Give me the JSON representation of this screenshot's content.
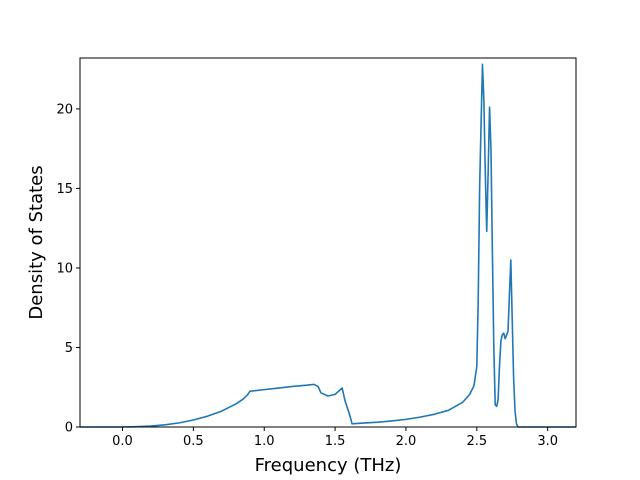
{
  "chart_data": {
    "type": "line",
    "title": "",
    "xlabel": "Frequency (THz)",
    "ylabel": "Density of States",
    "xlim": [
      -0.3,
      3.2
    ],
    "ylim": [
      0,
      23.2
    ],
    "grid": false,
    "legend": "none",
    "xticks": [
      {
        "value": 0.0,
        "label": "0.0"
      },
      {
        "value": 0.5,
        "label": "0.5"
      },
      {
        "value": 1.0,
        "label": "1.0"
      },
      {
        "value": 1.5,
        "label": "1.5"
      },
      {
        "value": 2.0,
        "label": "2.0"
      },
      {
        "value": 2.5,
        "label": "2.5"
      },
      {
        "value": 3.0,
        "label": "3.0"
      }
    ],
    "yticks": [
      {
        "value": 0,
        "label": "0"
      },
      {
        "value": 5,
        "label": "5"
      },
      {
        "value": 10,
        "label": "10"
      },
      {
        "value": 15,
        "label": "15"
      },
      {
        "value": 20,
        "label": "20"
      }
    ],
    "series": [
      {
        "color": "#1f77b4",
        "x": [
          -0.3,
          0.0,
          0.1,
          0.2,
          0.3,
          0.4,
          0.5,
          0.6,
          0.7,
          0.8,
          0.85,
          0.88,
          0.9,
          1.0,
          1.1,
          1.2,
          1.3,
          1.35,
          1.38,
          1.4,
          1.45,
          1.5,
          1.55,
          1.57,
          1.6,
          1.62,
          1.7,
          1.8,
          1.9,
          2.0,
          2.1,
          2.2,
          2.3,
          2.4,
          2.45,
          2.48,
          2.5,
          2.51,
          2.52,
          2.53,
          2.54,
          2.55,
          2.56,
          2.57,
          2.58,
          2.59,
          2.6,
          2.61,
          2.62,
          2.63,
          2.64,
          2.65,
          2.66,
          2.67,
          2.68,
          2.69,
          2.7,
          2.72,
          2.74,
          2.76,
          2.77,
          2.78,
          2.79,
          2.8,
          2.81,
          2.82,
          2.83,
          2.84,
          2.85,
          2.86,
          2.87,
          2.88,
          2.89,
          2.9,
          2.91,
          2.92,
          3.0,
          3.2
        ],
        "y": [
          0,
          0,
          0.02,
          0.06,
          0.14,
          0.26,
          0.44,
          0.68,
          1.0,
          1.45,
          1.75,
          2.0,
          2.25,
          2.35,
          2.45,
          2.55,
          2.63,
          2.68,
          2.55,
          2.15,
          1.95,
          2.05,
          2.45,
          1.65,
          0.85,
          0.2,
          0.25,
          0.3,
          0.38,
          0.48,
          0.62,
          0.8,
          1.05,
          1.55,
          2.05,
          2.6,
          3.8,
          8.0,
          15.0,
          19.0,
          22.8,
          20.5,
          16.0,
          12.3,
          16.0,
          20.1,
          17.5,
          11.0,
          5.0,
          1.4,
          1.3,
          1.7,
          3.8,
          5.4,
          5.8,
          5.9,
          5.55,
          6.0,
          10.5,
          3.0,
          1.0,
          0.2,
          0.0,
          0,
          0,
          0,
          0,
          0,
          0,
          0,
          0,
          0,
          0,
          0,
          0,
          0,
          0,
          0
        ]
      }
    ]
  }
}
